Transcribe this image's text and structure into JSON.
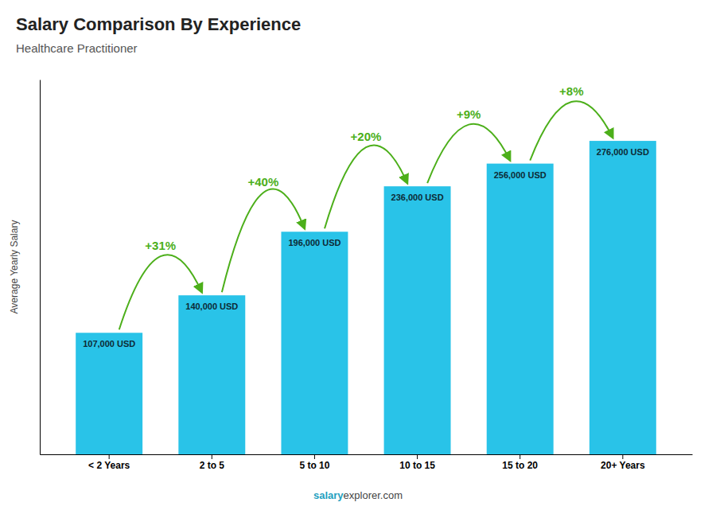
{
  "chart_data": {
    "type": "bar",
    "title": "Salary Comparison By Experience",
    "subtitle": "Healthcare Practitioner",
    "ylabel": "Average Yearly Salary",
    "categories": [
      "< 2 Years",
      "2 to 5",
      "5 to 10",
      "10 to 15",
      "15 to 20",
      "20+ Years"
    ],
    "values": [
      107000,
      140000,
      196000,
      236000,
      256000,
      276000
    ],
    "value_labels": [
      "107,000 USD",
      "140,000 USD",
      "196,000 USD",
      "236,000 USD",
      "256,000 USD",
      "276,000 USD"
    ],
    "data_labels": true,
    "annotations": [
      "+31%",
      "+40%",
      "+20%",
      "+9%",
      "+8%"
    ],
    "footer": [
      "salary",
      "explorer.com"
    ],
    "color": "#29c3e8",
    "ylim": [
      0,
      330000
    ],
    "tick_labels": "x",
    "grid": false
  }
}
